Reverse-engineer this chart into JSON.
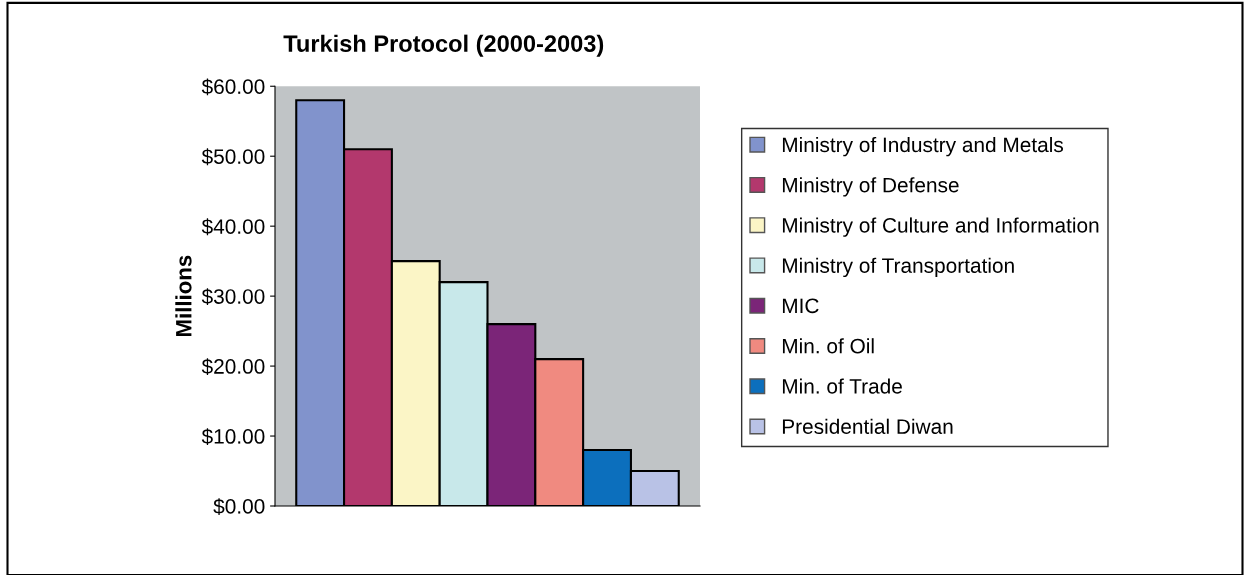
{
  "chart_data": {
    "type": "bar",
    "title": "Turkish Protocol (2000-2003)",
    "ylabel": "Millions",
    "categories": [
      null
    ],
    "series": [
      {
        "name": "Ministry of Industry and Metals",
        "color": "#8193cc",
        "values": [
          58
        ]
      },
      {
        "name": "Ministry of Defense",
        "color": "#b3386d",
        "values": [
          51
        ]
      },
      {
        "name": "Ministry of Culture and Information",
        "color": "#fbf5c6",
        "values": [
          35
        ]
      },
      {
        "name": "Ministry of Transportation",
        "color": "#c8e8ea",
        "values": [
          32
        ]
      },
      {
        "name": "MIC",
        "color": "#7b2578",
        "values": [
          26
        ]
      },
      {
        "name": "Min. of Oil",
        "color": "#f08a80",
        "values": [
          21
        ]
      },
      {
        "name": "Min. of Trade",
        "color": "#0c6fbd",
        "values": [
          8
        ]
      },
      {
        "name": "Presidential Diwan",
        "color": "#b9c2e6",
        "values": [
          5
        ]
      }
    ],
    "ylim": [
      0,
      60
    ],
    "yticks": [
      {
        "value": 0,
        "label": "$0.00"
      },
      {
        "value": 10,
        "label": "$10.00"
      },
      {
        "value": 20,
        "label": "$20.00"
      },
      {
        "value": 30,
        "label": "$30.00"
      },
      {
        "value": 40,
        "label": "$40.00"
      },
      {
        "value": 50,
        "label": "$50.00"
      },
      {
        "value": 60,
        "label": "$60.00"
      }
    ],
    "grid": false,
    "legend": "right"
  }
}
